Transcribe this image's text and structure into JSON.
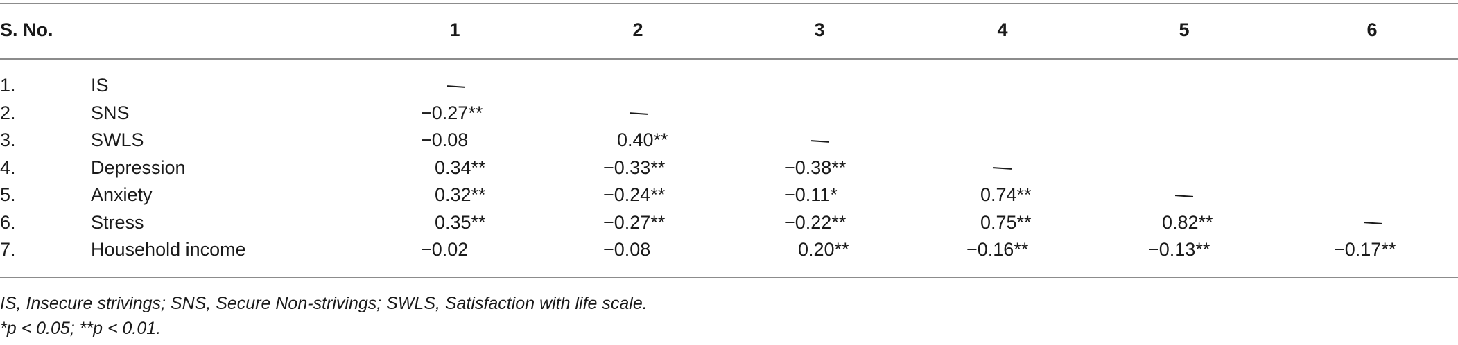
{
  "header": {
    "sno": "S. No.",
    "cols": [
      "1",
      "2",
      "3",
      "4",
      "5",
      "6"
    ]
  },
  "rows": [
    {
      "num": "1.",
      "label": "IS",
      "vals": [
        "—",
        "",
        "",
        "",
        "",
        ""
      ]
    },
    {
      "num": "2.",
      "label": "SNS",
      "vals": [
        "−0.27**",
        "—",
        "",
        "",
        "",
        ""
      ]
    },
    {
      "num": "3.",
      "label": "SWLS",
      "vals": [
        "−0.08",
        "0.40**",
        "—",
        "",
        "",
        ""
      ]
    },
    {
      "num": "4.",
      "label": "Depression",
      "vals": [
        "0.34**",
        "−0.33**",
        "−0.38**",
        "—",
        "",
        ""
      ]
    },
    {
      "num": "5.",
      "label": "Anxiety",
      "vals": [
        "0.32**",
        "−0.24**",
        "−0.11*",
        "0.74**",
        "—",
        ""
      ]
    },
    {
      "num": "6.",
      "label": "Stress",
      "vals": [
        "0.35**",
        "−0.27**",
        "−0.22**",
        "0.75**",
        "0.82**",
        "—"
      ]
    },
    {
      "num": "7.",
      "label": "Household income",
      "vals": [
        "−0.02",
        "−0.08",
        "0.20**",
        "−0.16**",
        "−0.13**",
        "−0.17**"
      ]
    }
  ],
  "footnotes": {
    "abbreviations": "IS, Insecure strivings; SNS, Secure Non-strivings; SWLS, Satisfaction with life scale.",
    "significance": "*p < 0.05; **p < 0.01."
  }
}
